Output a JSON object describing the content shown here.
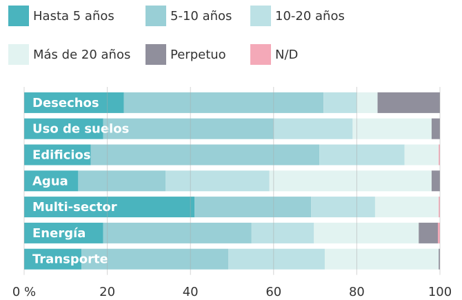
{
  "chart_data": {
    "type": "stacked-bar-horizontal",
    "categories": [
      "Desechos",
      "Uso de suelos",
      "Edificios",
      "Agua",
      "Multi-sector",
      "Energía",
      "Transporte"
    ],
    "series": [
      {
        "name": "Hasta 5 años",
        "color": "#4ab4be",
        "values": [
          24,
          19,
          16,
          13,
          41,
          19,
          13.8
        ]
      },
      {
        "name": "5-10 años",
        "color": "#99cfd6",
        "values": [
          48,
          41,
          55,
          21,
          28,
          35.7,
          35.3
        ]
      },
      {
        "name": "10-20 años",
        "color": "#bce1e5",
        "values": [
          8,
          19,
          20.5,
          25,
          15.4,
          15,
          23.2
        ]
      },
      {
        "name": "Más de 20 años",
        "color": "#e2f3f1",
        "values": [
          5,
          19,
          8.2,
          39,
          15.3,
          25.2,
          27.4
        ]
      },
      {
        "name": "Perpetuo",
        "color": "#908f9c",
        "values": [
          15,
          2,
          0,
          2,
          0,
          4.6,
          0.3
        ]
      },
      {
        "name": "N/D",
        "color": "#f4a9b8",
        "values": [
          0,
          0,
          0.3,
          0,
          0.3,
          0.5,
          0
        ]
      }
    ],
    "xlim": [
      0,
      100
    ],
    "xticks": [
      {
        "value": 0,
        "label": "0 %"
      },
      20,
      40,
      60,
      80,
      100
    ],
    "grid": true
  }
}
